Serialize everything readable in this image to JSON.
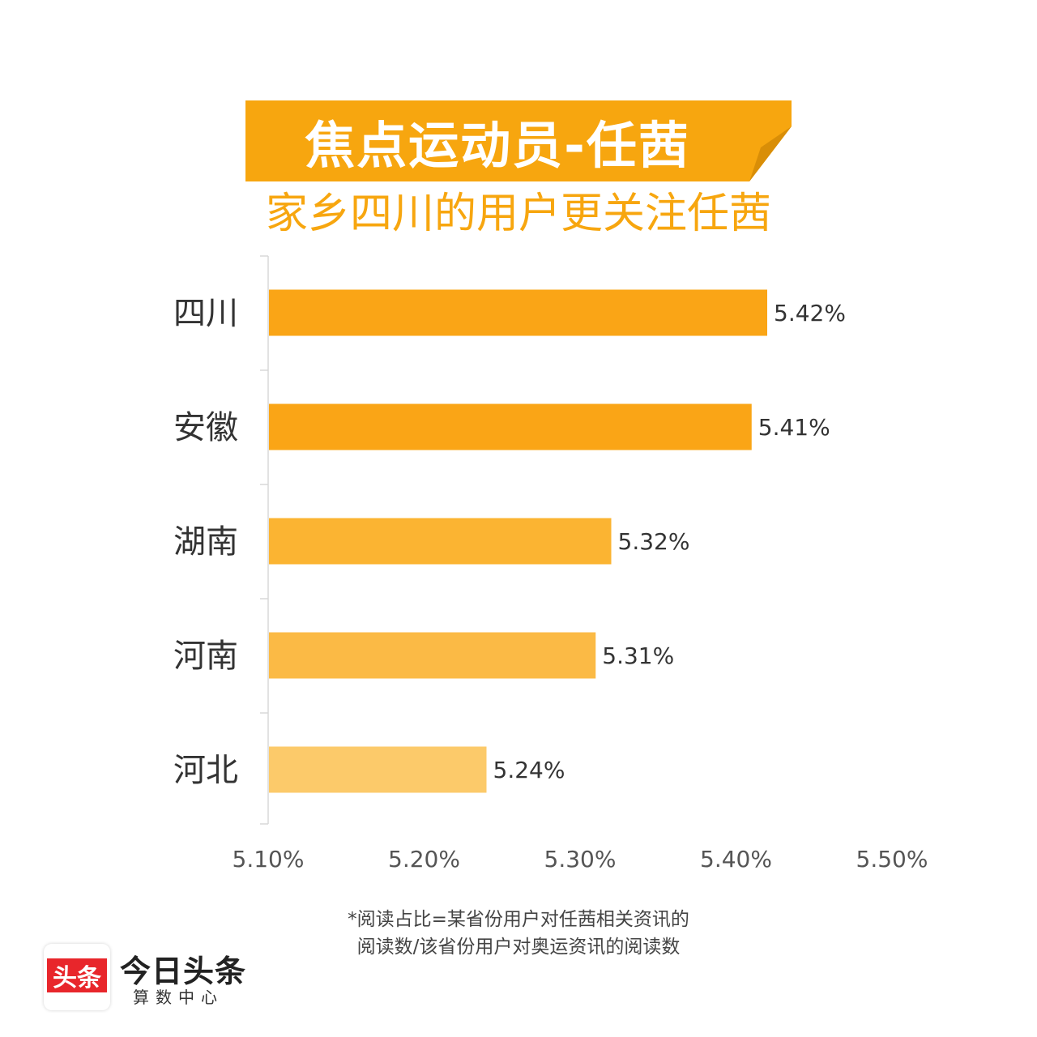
{
  "header": {
    "banner_title": "焦点运动员-任茜",
    "subtitle": "家乡四川的用户更关注任茜"
  },
  "colors": {
    "banner": "#F7A60F",
    "banner_fold": "#D98E07",
    "axis": "#d8d8d8",
    "label_text": "#333333",
    "value_text": "#333333",
    "tick_text": "#555555"
  },
  "chart_data": {
    "type": "bar",
    "orientation": "horizontal",
    "categories": [
      "四川",
      "安徽",
      "湖南",
      "河南",
      "河北"
    ],
    "values": [
      5.42,
      5.41,
      5.32,
      5.31,
      5.24
    ],
    "value_labels": [
      "5.42%",
      "5.41%",
      "5.32%",
      "5.31%",
      "5.24%"
    ],
    "bar_colors": [
      "#FAA516",
      "#FAA516",
      "#FBB432",
      "#FBBA45",
      "#FCCA6A"
    ],
    "xlim": [
      5.1,
      5.5
    ],
    "x_ticks": [
      5.1,
      5.2,
      5.3,
      5.4,
      5.5
    ],
    "x_tick_labels": [
      "5.10%",
      "5.20%",
      "5.30%",
      "5.40%",
      "5.50%"
    ],
    "grid": false,
    "legend": "none"
  },
  "footnote": {
    "line1": "*阅读占比=某省份用户对任茜相关资讯的",
    "line2": "阅读数/该省份用户对奥运资讯的阅读数"
  },
  "logo": {
    "badge": "头条",
    "name": "今日头条",
    "tagline": "算数中心"
  }
}
